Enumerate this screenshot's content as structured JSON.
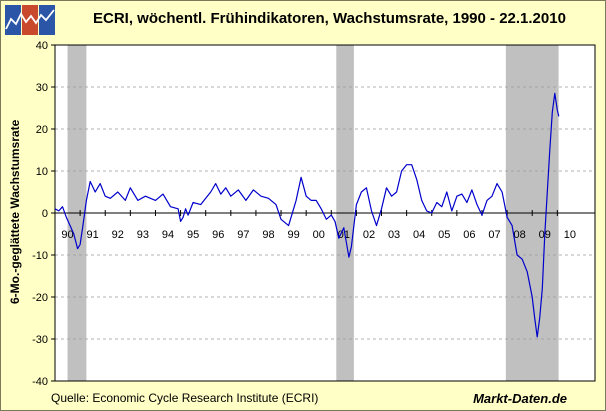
{
  "header": {
    "title": "ECRI, wöchentl. Frühindikatoren, Wachstumsrate, 1990 - 22.1.2010"
  },
  "footer": {
    "source": "Quelle: Economic Cycle Research Institute (ECRI)",
    "brand": "Markt-Daten.de"
  },
  "logo": {
    "icon": "chart-logo-icon",
    "colors": [
      "#2b56a8",
      "#c9492c",
      "#2b56a8"
    ]
  },
  "chart_data": {
    "type": "line",
    "title": "ECRI, wöchentl. Frühindikatoren, Wachstumsrate, 1990 - 22.1.2010",
    "ylabel": "6-Mo.-geglättete Wachstumsrate",
    "xlabel": "",
    "ylim": [
      -40,
      40
    ],
    "xlim": [
      1990.0,
      2011.5
    ],
    "yticks": [
      40,
      30,
      20,
      10,
      0,
      -10,
      -20,
      -30,
      -40
    ],
    "xtick_labels": [
      "90",
      "91",
      "92",
      "93",
      "94",
      "95",
      "96",
      "97",
      "98",
      "99",
      "00",
      "01",
      "02",
      "03",
      "04",
      "05",
      "06",
      "07",
      "08",
      "09",
      "10"
    ],
    "grid": true,
    "line_color": "#0000cc",
    "recession_color": "#c0c0c0",
    "recessions": [
      [
        1990.5,
        1991.25
      ],
      [
        2001.2,
        2001.9
      ],
      [
        2007.95,
        2010.05
      ]
    ],
    "series": [
      {
        "x": [
          1990.0,
          1990.15,
          1990.3,
          1990.45,
          1990.6,
          1990.75,
          1990.9,
          1991.0,
          1991.1,
          1991.25,
          1991.4,
          1991.6,
          1991.8,
          1992.0,
          1992.2,
          1992.5,
          1992.8,
          1993.0,
          1993.3,
          1993.6,
          1994.0,
          1994.3,
          1994.6,
          1994.9,
          1995.0,
          1995.1,
          1995.2,
          1995.3,
          1995.5,
          1995.8,
          1996.0,
          1996.2,
          1996.4,
          1996.6,
          1996.8,
          1997.0,
          1997.3,
          1997.6,
          1997.9,
          1998.2,
          1998.5,
          1998.8,
          1999.0,
          1999.3,
          1999.6,
          1999.8,
          2000.0,
          2000.2,
          2000.4,
          2000.6,
          2000.8,
          2001.0,
          2001.15,
          2001.3,
          2001.5,
          2001.7,
          2001.8,
          2001.9,
          2002.0,
          2002.2,
          2002.4,
          2002.6,
          2002.8,
          2003.0,
          2003.2,
          2003.4,
          2003.6,
          2003.8,
          2004.0,
          2004.2,
          2004.4,
          2004.6,
          2004.8,
          2005.0,
          2005.2,
          2005.4,
          2005.6,
          2005.8,
          2006.0,
          2006.2,
          2006.4,
          2006.6,
          2006.8,
          2007.0,
          2007.2,
          2007.4,
          2007.6,
          2007.8,
          2008.0,
          2008.2,
          2008.4,
          2008.6,
          2008.8,
          2009.0,
          2009.1,
          2009.2,
          2009.3,
          2009.4,
          2009.5,
          2009.6,
          2009.7,
          2009.8,
          2009.9,
          2010.0,
          2010.06
        ],
        "y": [
          1.0,
          0.5,
          1.5,
          -1.0,
          -3.0,
          -5.0,
          -8.5,
          -7.5,
          -3.5,
          3.0,
          7.5,
          5.0,
          7.0,
          4.0,
          3.5,
          5.0,
          3.0,
          6.0,
          3.0,
          4.0,
          3.0,
          4.5,
          1.5,
          1.0,
          -2.0,
          -1.0,
          1.0,
          -0.5,
          2.5,
          2.0,
          3.5,
          5.0,
          7.0,
          4.5,
          6.0,
          4.0,
          5.5,
          3.0,
          5.5,
          4.0,
          3.5,
          2.0,
          -1.5,
          -3.0,
          3.0,
          8.5,
          4.0,
          3.0,
          3.0,
          1.0,
          -1.5,
          -0.5,
          -2.0,
          -6.0,
          -3.5,
          -10.5,
          -8.0,
          -3.0,
          2.0,
          5.0,
          6.0,
          0.5,
          -3.0,
          1.0,
          6.0,
          4.0,
          5.0,
          10.0,
          11.5,
          11.5,
          8.0,
          3.0,
          0.5,
          0.0,
          2.5,
          1.5,
          5.0,
          0.5,
          4.0,
          4.5,
          2.5,
          5.5,
          2.0,
          -0.5,
          3.0,
          4.0,
          7.0,
          5.0,
          -1.0,
          -3.0,
          -10.0,
          -11.0,
          -14.0,
          -20.0,
          -25.0,
          -29.5,
          -25.0,
          -18.0,
          -5.0,
          5.0,
          15.0,
          24.0,
          28.5,
          24.5,
          23.0
        ]
      }
    ]
  }
}
